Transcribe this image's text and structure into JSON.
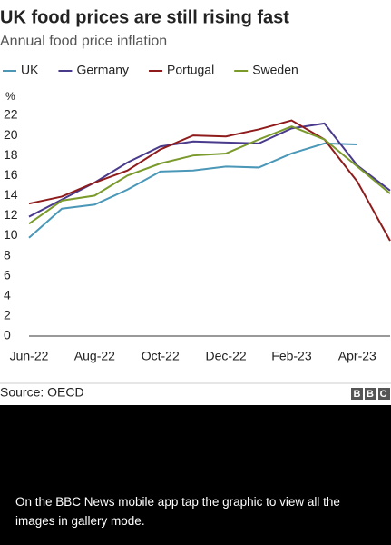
{
  "chart_data": {
    "type": "line",
    "title": "UK food prices are still rising fast",
    "subtitle": "Annual food price inflation",
    "ylabel": "%",
    "categories": [
      "Jun-22",
      null,
      "Aug-22",
      null,
      "Oct-22",
      null,
      "Dec-22",
      null,
      "Feb-23",
      null,
      "Apr-23",
      null
    ],
    "series": [
      {
        "name": "UK",
        "color": "#4a97b8",
        "values": [
          9.8,
          12.7,
          13.1,
          14.6,
          16.4,
          16.5,
          16.9,
          16.8,
          18.2,
          19.2,
          19.1,
          null
        ]
      },
      {
        "name": "Germany",
        "color": "#4a3a8c",
        "values": [
          11.9,
          13.6,
          15.3,
          17.3,
          18.9,
          19.4,
          19.3,
          19.2,
          20.7,
          21.2,
          17.0,
          14.5
        ]
      },
      {
        "name": "Portugal",
        "color": "#8f1c1c",
        "values": [
          13.2,
          13.9,
          15.3,
          16.5,
          18.6,
          20.0,
          19.9,
          20.6,
          21.5,
          19.6,
          15.4,
          9.5
        ]
      },
      {
        "name": "Sweden",
        "color": "#7a9a2c",
        "values": [
          11.2,
          13.5,
          14.0,
          16.0,
          17.2,
          18.0,
          18.2,
          19.6,
          20.9,
          19.6,
          16.9,
          14.2
        ]
      }
    ],
    "ylim": [
      0,
      22
    ],
    "yticks": [
      0,
      2,
      4,
      6,
      8,
      10,
      12,
      14,
      16,
      18,
      20,
      22
    ],
    "grid": false,
    "legend": "top"
  },
  "footer": {
    "source": "Source: OECD",
    "logo": "BBC",
    "caption": "On the BBC News mobile app tap the graphic to view all the images in gallery mode."
  }
}
